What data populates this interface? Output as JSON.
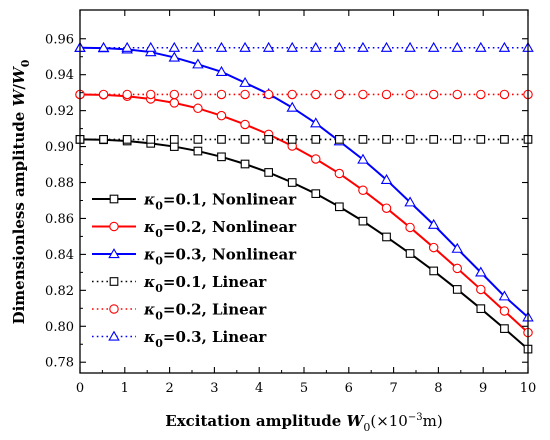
{
  "chart_data": {
    "type": "line",
    "xlabel": {
      "prefix": "Excitation amplitude ",
      "var": "W",
      "sub": "0",
      "unit_open": "(×10",
      "unit_exp": "−3",
      "unit_close": "m)"
    },
    "ylabel": {
      "prefix": "Dimensionless amplitude ",
      "var1": "W",
      "slash": "/",
      "var2": "W",
      "sub": "0"
    },
    "xlim": [
      0,
      10
    ],
    "ylim": [
      0.774,
      0.976
    ],
    "xticks": [
      0,
      1,
      2,
      3,
      4,
      5,
      6,
      7,
      8,
      9,
      10
    ],
    "yticks": [
      0.78,
      0.8,
      0.82,
      0.84,
      0.86,
      0.88,
      0.9,
      0.92,
      0.94,
      0.96
    ],
    "ytick_labels": [
      "0.78",
      "0.80",
      "0.82",
      "0.84",
      "0.86",
      "0.88",
      "0.90",
      "0.92",
      "0.94",
      "0.96"
    ],
    "grid": false,
    "legend_position": "bottom-left",
    "x": [
      0,
      0.526,
      1.053,
      1.579,
      2.105,
      2.632,
      3.158,
      3.684,
      4.211,
      4.737,
      5.263,
      5.789,
      6.316,
      6.842,
      7.368,
      7.895,
      8.421,
      8.947,
      9.474,
      10
    ],
    "series": [
      {
        "name": "=0.1, Nonlinear",
        "kappa": "κ",
        "sub": "0",
        "color": "#000000",
        "dash": "solid",
        "marker": "square",
        "values": [
          0.904,
          0.9038,
          0.9031,
          0.9018,
          0.9,
          0.8975,
          0.8943,
          0.8903,
          0.8856,
          0.88,
          0.8738,
          0.8665,
          0.8585,
          0.8497,
          0.8405,
          0.8308,
          0.8205,
          0.8098,
          0.7987,
          0.7873
        ]
      },
      {
        "name": "=0.2, Nonlinear",
        "kappa": "κ",
        "sub": "0",
        "color": "#ff0000",
        "dash": "solid",
        "marker": "circle",
        "values": [
          0.929,
          0.9288,
          0.928,
          0.9265,
          0.9243,
          0.9213,
          0.9172,
          0.9123,
          0.9068,
          0.9003,
          0.8931,
          0.885,
          0.8757,
          0.8657,
          0.855,
          0.8438,
          0.8322,
          0.8205,
          0.8085,
          0.7965
        ]
      },
      {
        "name": "=0.3, Nonlinear",
        "kappa": "κ",
        "sub": "0",
        "color": "#0000ff",
        "dash": "solid",
        "marker": "triangle",
        "values": [
          0.955,
          0.9548,
          0.9541,
          0.9526,
          0.9496,
          0.9458,
          0.9416,
          0.9355,
          0.9293,
          0.9217,
          0.913,
          0.903,
          0.8928,
          0.8815,
          0.869,
          0.8565,
          0.8432,
          0.83,
          0.8167,
          0.805
        ]
      },
      {
        "name": "=0.1, Linear",
        "kappa": "κ",
        "sub": "0",
        "color": "#000000",
        "dash": "dotted",
        "marker": "square",
        "values": [
          0.904,
          0.904,
          0.904,
          0.904,
          0.904,
          0.904,
          0.904,
          0.904,
          0.904,
          0.904,
          0.904,
          0.904,
          0.904,
          0.904,
          0.904,
          0.904,
          0.904,
          0.904,
          0.904,
          0.904
        ]
      },
      {
        "name": "=0.2, Linear",
        "kappa": "κ",
        "sub": "0",
        "color": "#ff0000",
        "dash": "dotted",
        "marker": "circle",
        "values": [
          0.929,
          0.929,
          0.929,
          0.929,
          0.929,
          0.929,
          0.929,
          0.929,
          0.929,
          0.929,
          0.929,
          0.929,
          0.929,
          0.929,
          0.929,
          0.929,
          0.929,
          0.929,
          0.929,
          0.929
        ]
      },
      {
        "name": "=0.3, Linear",
        "kappa": "κ",
        "sub": "0",
        "color": "#0000ff",
        "dash": "dotted",
        "marker": "triangle",
        "values": [
          0.955,
          0.955,
          0.955,
          0.955,
          0.955,
          0.955,
          0.955,
          0.955,
          0.955,
          0.955,
          0.955,
          0.955,
          0.955,
          0.955,
          0.955,
          0.955,
          0.955,
          0.955,
          0.955,
          0.955
        ]
      }
    ]
  }
}
